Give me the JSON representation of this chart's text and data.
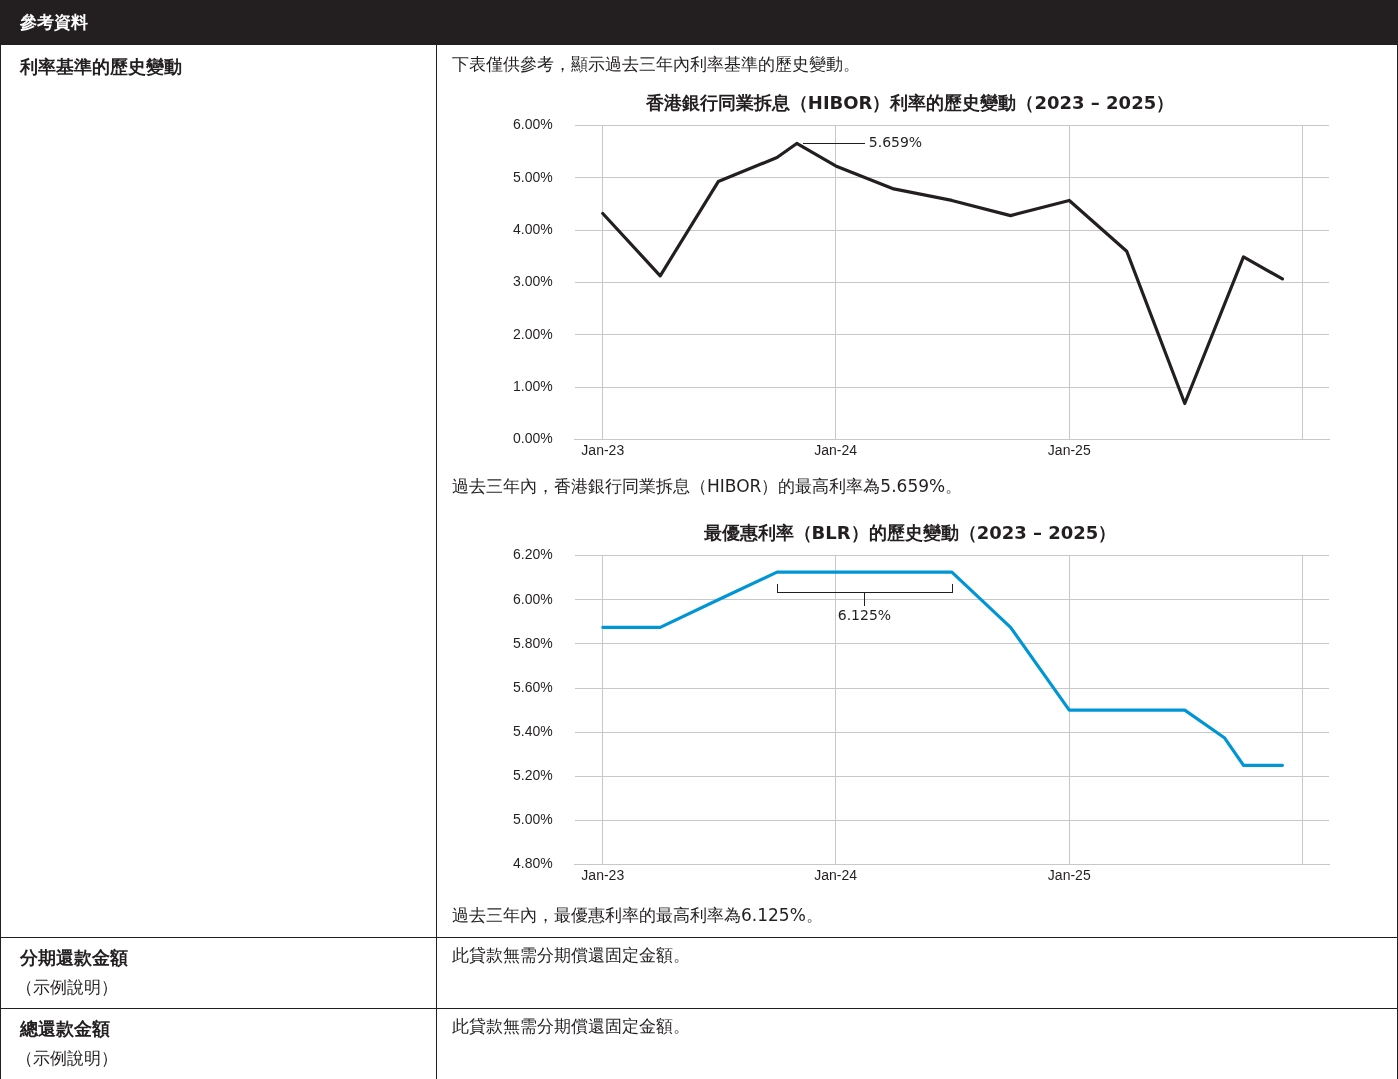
{
  "chart_data": [
    {
      "type": "other",
      "annotations": [
        "參考資料",
        "利率基準的歷史變動"
      ]
    },
    {
      "type": "line",
      "title": "香港銀行同業拆息（HIBOR）利率的歷史變動（2023 – 2025）",
      "subtitle": "下表僅供參考，顯示過去三年內利率基準的歷史變動。",
      "x": [
        "2023-01",
        "2023-04",
        "2023-07",
        "2023-10",
        "2023-11",
        "2024-01",
        "2024-04",
        "2024-07",
        "2024-10",
        "2025-01",
        "2025-04",
        "2025-07",
        "2025-10",
        "2025-12"
      ],
      "series": [
        {
          "color": "#231f20",
          "values": [
            4.32,
            3.13,
            4.93,
            5.39,
            5.659,
            5.23,
            4.79,
            4.57,
            4.28,
            4.57,
            3.6,
            0.69,
            3.49,
            3.07
          ]
        }
      ],
      "xlim": [
        "2022-11-18",
        "2026-02-12"
      ],
      "xticks": [
        {
          "value": "2023-01",
          "label": "Jan-23"
        },
        {
          "value": "2024-01",
          "label": "Jan-24"
        },
        {
          "value": "2025-01",
          "label": "Jan-25"
        },
        {
          "value": "2026-01",
          "label": null
        }
      ],
      "ylim": [
        0,
        6
      ],
      "yticks": [
        {
          "value": 0,
          "label": "0.00%"
        },
        {
          "value": 1,
          "label": "1.00%"
        },
        {
          "value": 2,
          "label": "2.00%"
        },
        {
          "value": 3,
          "label": "3.00%"
        },
        {
          "value": 4,
          "label": "4.00%"
        },
        {
          "value": 5,
          "label": "5.00%"
        },
        {
          "value": 6,
          "label": "6.00%"
        }
      ],
      "grid": true,
      "legend": false,
      "marker": "none",
      "line_style": "solid",
      "annotations": [
        "5.659%",
        "過去三年內，香港銀行同業拆息（HIBOR）的最高利率為5.659%。"
      ]
    },
    {
      "type": "line",
      "title": "最優惠利率（BLR）的歷史變動（2023 – 2025）",
      "x": [
        "2023-01",
        "2023-04",
        "2023-07",
        "2023-10",
        "2024-07",
        "2024-10",
        "2025-01",
        "2025-07",
        "2025-09",
        "2025-10",
        "2025-12"
      ],
      "series": [
        {
          "color": "#0096d6",
          "values": [
            5.875,
            5.875,
            6.0,
            6.125,
            6.125,
            5.875,
            5.5,
            5.5,
            5.375,
            5.25,
            5.25
          ]
        }
      ],
      "xlim": [
        "2022-11-18",
        "2026-02-12"
      ],
      "xticks": [
        {
          "value": "2023-01",
          "label": "Jan-23"
        },
        {
          "value": "2024-01",
          "label": "Jan-24"
        },
        {
          "value": "2025-01",
          "label": "Jan-25"
        },
        {
          "value": "2026-01",
          "label": null
        }
      ],
      "ylim": [
        4.8,
        6.2
      ],
      "yticks": [
        {
          "value": 4.8,
          "label": "4.80%"
        },
        {
          "value": 5,
          "label": "5.00%"
        },
        {
          "value": 5.2,
          "label": "5.20%"
        },
        {
          "value": 5.4,
          "label": "5.40%"
        },
        {
          "value": 5.6,
          "label": "5.60%"
        },
        {
          "value": 5.8,
          "label": "5.80%"
        },
        {
          "value": 6,
          "label": "6.00%"
        },
        {
          "value": 6.2,
          "label": "6.20%"
        }
      ],
      "grid": true,
      "legend": false,
      "marker": "none",
      "line_style": "solid",
      "annotations": [
        "6.125%",
        "過去三年內，最優惠利率的最高利率為6.125%。"
      ]
    },
    {
      "type": "other",
      "annotations": [
        "分期還款金額",
        "（示例說明）",
        "此貸款無需分期償還固定金額。",
        "總還款金額",
        "（示例說明）",
        "此貸款無需分期償還固定金額。"
      ]
    }
  ]
}
